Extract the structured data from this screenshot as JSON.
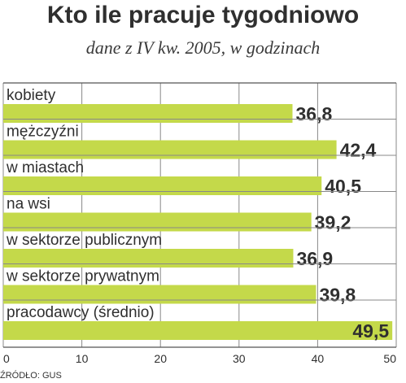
{
  "title": "Kto ile pracuje tygodniowo",
  "subtitle": "dane z IV kw. 2005, w godzinach",
  "source": "ŹRÓDŁO: GUS",
  "colors": {
    "bar": "#c4d94a",
    "grid": "#888888",
    "text": "#2f2f2f"
  },
  "chart_data": {
    "type": "bar",
    "orientation": "horizontal",
    "categories": [
      "kobiety",
      "mężczyźni",
      "w miastach",
      "na wsi",
      "w sektorze publicznym",
      "w sektorze prywatnym",
      "pracodawcy (średnio)"
    ],
    "values": [
      36.8,
      42.4,
      40.5,
      39.2,
      36.9,
      39.8,
      49.5
    ],
    "value_labels": [
      "36,8",
      "42,4",
      "40,5",
      "39,2",
      "36,9",
      "39,8",
      "49,5"
    ],
    "xlim": [
      0,
      50
    ],
    "xticks": [
      0,
      10,
      20,
      30,
      40,
      50
    ],
    "grid": true
  }
}
